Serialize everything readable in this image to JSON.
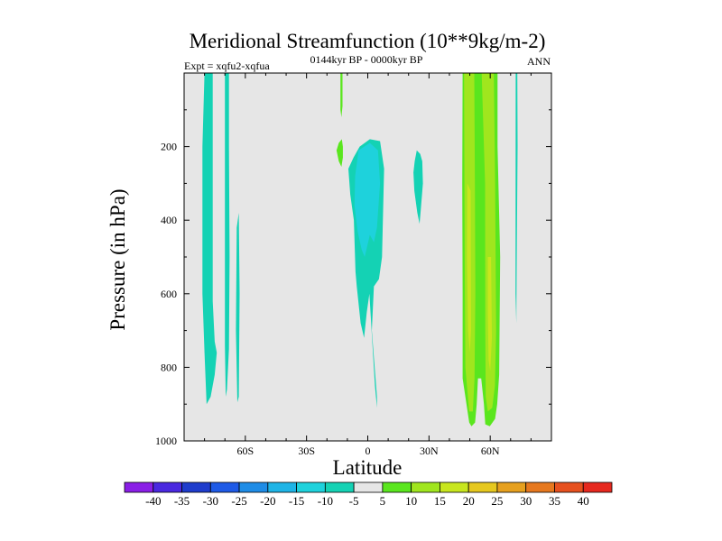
{
  "chart_data": {
    "type": "contour",
    "title": "Meridional Streamfunction (10**9kg/m-2)",
    "subtitle_left": "Expt = xqfu2-xqfua",
    "subtitle_center": "0144kyr BP - 0000kyr BP",
    "subtitle_right": "ANN",
    "xlabel": "Latitude",
    "ylabel": "Pressure (in hPa)",
    "xlim": [
      -90,
      90
    ],
    "ylim": [
      0,
      1000
    ],
    "y_reversed": true,
    "x_ticks": [
      {
        "value": -60,
        "label": "60S"
      },
      {
        "value": -30,
        "label": "30S"
      },
      {
        "value": 0,
        "label": "0"
      },
      {
        "value": 30,
        "label": "30N"
      },
      {
        "value": 60,
        "label": "60N"
      }
    ],
    "y_ticks": [
      {
        "value": 200,
        "label": "200"
      },
      {
        "value": 400,
        "label": "400"
      },
      {
        "value": 600,
        "label": "600"
      },
      {
        "value": 800,
        "label": "800"
      },
      {
        "value": 1000,
        "label": "1000"
      }
    ],
    "background_color": "#e6e6e6",
    "colorbar": {
      "labels": [
        "-40",
        "-35",
        "-30",
        "-25",
        "-20",
        "-15",
        "-10",
        "-5",
        "5",
        "10",
        "15",
        "20",
        "25",
        "30",
        "35",
        "40"
      ],
      "colors": [
        "#8a1ee6",
        "#4a28e0",
        "#1e3ccc",
        "#1e5ae6",
        "#1e8ce6",
        "#1eb4e6",
        "#1ed2dc",
        "#14d2b4",
        "#e6e6e6",
        "#5ae61e",
        "#a0e61e",
        "#c8e61e",
        "#e6c81e",
        "#e6a01e",
        "#e6781e",
        "#e6501e",
        "#e6281e"
      ]
    },
    "regions": [
      {
        "name": "sh-high-lat-band",
        "level": -5,
        "color": "#14d2b4",
        "points": [
          [
            -80,
            0
          ],
          [
            -76,
            0
          ],
          [
            -76,
            620
          ],
          [
            -75,
            730
          ],
          [
            -74,
            760
          ],
          [
            -75,
            820
          ],
          [
            -77,
            880
          ],
          [
            -79,
            900
          ],
          [
            -80,
            760
          ],
          [
            -81,
            600
          ],
          [
            -81,
            200
          ]
        ]
      },
      {
        "name": "sh-mid-lat-strip",
        "level": -5,
        "color": "#14d2b4",
        "points": [
          [
            -70,
            0
          ],
          [
            -68,
            0
          ],
          [
            -68,
            200
          ],
          [
            -67.7,
            500
          ],
          [
            -68,
            750
          ],
          [
            -69,
            860
          ],
          [
            -69.6,
            880
          ],
          [
            -70,
            740
          ],
          [
            -70,
            400
          ]
        ]
      },
      {
        "name": "sh-thin-strip",
        "level": -5,
        "color": "#14d2b4",
        "points": [
          [
            -64.2,
            420
          ],
          [
            -63.2,
            380
          ],
          [
            -62.8,
            600
          ],
          [
            -63.2,
            880
          ],
          [
            -63.9,
            895
          ],
          [
            -64.6,
            700
          ]
        ]
      },
      {
        "name": "tropical-cell-outer",
        "level": -5,
        "color": "#14d2b4",
        "points": [
          [
            -4,
            200
          ],
          [
            1,
            180
          ],
          [
            6,
            185
          ],
          [
            8,
            260
          ],
          [
            7,
            500
          ],
          [
            5.5,
            560
          ],
          [
            3,
            580
          ],
          [
            2,
            700
          ],
          [
            4.5,
            880
          ],
          [
            4.5,
            910
          ],
          [
            3.5,
            850
          ],
          [
            0.8,
            600
          ],
          [
            -0.5,
            650
          ],
          [
            -1.8,
            720
          ],
          [
            -3.5,
            680
          ],
          [
            -5.4,
            580
          ],
          [
            -6,
            540
          ],
          [
            -6.8,
            400
          ],
          [
            -8.6,
            330
          ],
          [
            -9.5,
            260
          ],
          [
            -7,
            230
          ]
        ]
      },
      {
        "name": "tropical-cell-core",
        "level": -10,
        "color": "#1ed2dc",
        "points": [
          [
            -4.5,
            210
          ],
          [
            1,
            190
          ],
          [
            5,
            210
          ],
          [
            6,
            300
          ],
          [
            4.5,
            420
          ],
          [
            3,
            460
          ],
          [
            1,
            440
          ],
          [
            -1.5,
            500
          ],
          [
            -3,
            480
          ],
          [
            -5,
            430
          ],
          [
            -6.5,
            360
          ],
          [
            -6.2,
            280
          ]
        ]
      },
      {
        "name": "nh-subtropical-blob",
        "level": -5,
        "color": "#14d2b4",
        "points": [
          [
            23,
            240
          ],
          [
            24,
            210
          ],
          [
            25.7,
            220
          ],
          [
            26.7,
            240
          ],
          [
            27,
            300
          ],
          [
            26,
            370
          ],
          [
            25.4,
            410
          ],
          [
            24.3,
            380
          ],
          [
            22.8,
            320
          ],
          [
            22.4,
            270
          ]
        ]
      },
      {
        "name": "polar-tick-upper",
        "level": 5,
        "color": "#5ae61e",
        "points": [
          [
            -13.4,
            0
          ],
          [
            -12.4,
            0
          ],
          [
            -12.4,
            90
          ],
          [
            -12.9,
            120
          ],
          [
            -13.4,
            100
          ]
        ]
      },
      {
        "name": "polar-tick-lower",
        "level": 5,
        "color": "#5ae61e",
        "points": [
          [
            -14.2,
            190
          ],
          [
            -12.7,
            180
          ],
          [
            -12.2,
            200
          ],
          [
            -12.2,
            230
          ],
          [
            -12.9,
            255
          ],
          [
            -14.2,
            240
          ],
          [
            -15.3,
            210
          ]
        ]
      },
      {
        "name": "nh-cell-outer",
        "level": 5,
        "color": "#5ae61e",
        "points": [
          [
            46.5,
            0
          ],
          [
            63.6,
            0
          ],
          [
            63.6,
            200
          ],
          [
            64.9,
            500
          ],
          [
            64.4,
            820
          ],
          [
            63.4,
            900
          ],
          [
            62.4,
            940
          ],
          [
            59.8,
            960
          ],
          [
            57.6,
            955
          ],
          [
            56.9,
            900
          ],
          [
            55.6,
            830
          ],
          [
            54,
            830
          ],
          [
            53.4,
            900
          ],
          [
            52.6,
            950
          ],
          [
            50.8,
            960
          ],
          [
            49.7,
            950
          ],
          [
            46.5,
            830
          ],
          [
            46.5,
            600
          ],
          [
            46.3,
            300
          ]
        ]
      },
      {
        "name": "nh-cell-left-lobe",
        "level": 10,
        "color": "#a0e61e",
        "points": [
          [
            47.2,
            0
          ],
          [
            52.2,
            0
          ],
          [
            52.5,
            300
          ],
          [
            52.7,
            600
          ],
          [
            52.3,
            830
          ],
          [
            51.5,
            920
          ],
          [
            49.7,
            920
          ],
          [
            47.8,
            800
          ],
          [
            47.5,
            500
          ]
        ]
      },
      {
        "name": "nh-cell-right-lobe",
        "level": 10,
        "color": "#a0e61e",
        "points": [
          [
            55.8,
            0
          ],
          [
            61.8,
            0
          ],
          [
            62.4,
            300
          ],
          [
            62.9,
            700
          ],
          [
            62.3,
            850
          ],
          [
            61,
            910
          ],
          [
            58.8,
            920
          ],
          [
            57.8,
            880
          ],
          [
            57.6,
            700
          ],
          [
            57.5,
            300
          ]
        ]
      },
      {
        "name": "nh-core-a",
        "level": 15,
        "color": "#c8e61e",
        "points": [
          [
            48.8,
            300
          ],
          [
            50.4,
            320
          ],
          [
            50.6,
            700
          ],
          [
            50,
            760
          ],
          [
            49.2,
            700
          ],
          [
            48.6,
            500
          ]
        ]
      },
      {
        "name": "nh-core-b",
        "level": 15,
        "color": "#c8e61e",
        "points": [
          [
            58.8,
            500
          ],
          [
            60.4,
            500
          ],
          [
            60.8,
            720
          ],
          [
            60,
            810
          ],
          [
            59.2,
            780
          ],
          [
            58.8,
            650
          ]
        ]
      },
      {
        "name": "nh-small-strip",
        "level": -5,
        "color": "#14d2b4",
        "points": [
          [
            72.5,
            0
          ],
          [
            73.3,
            0
          ],
          [
            73.4,
            200
          ],
          [
            73,
            500
          ],
          [
            72.8,
            680
          ],
          [
            72.4,
            600
          ]
        ]
      }
    ]
  }
}
